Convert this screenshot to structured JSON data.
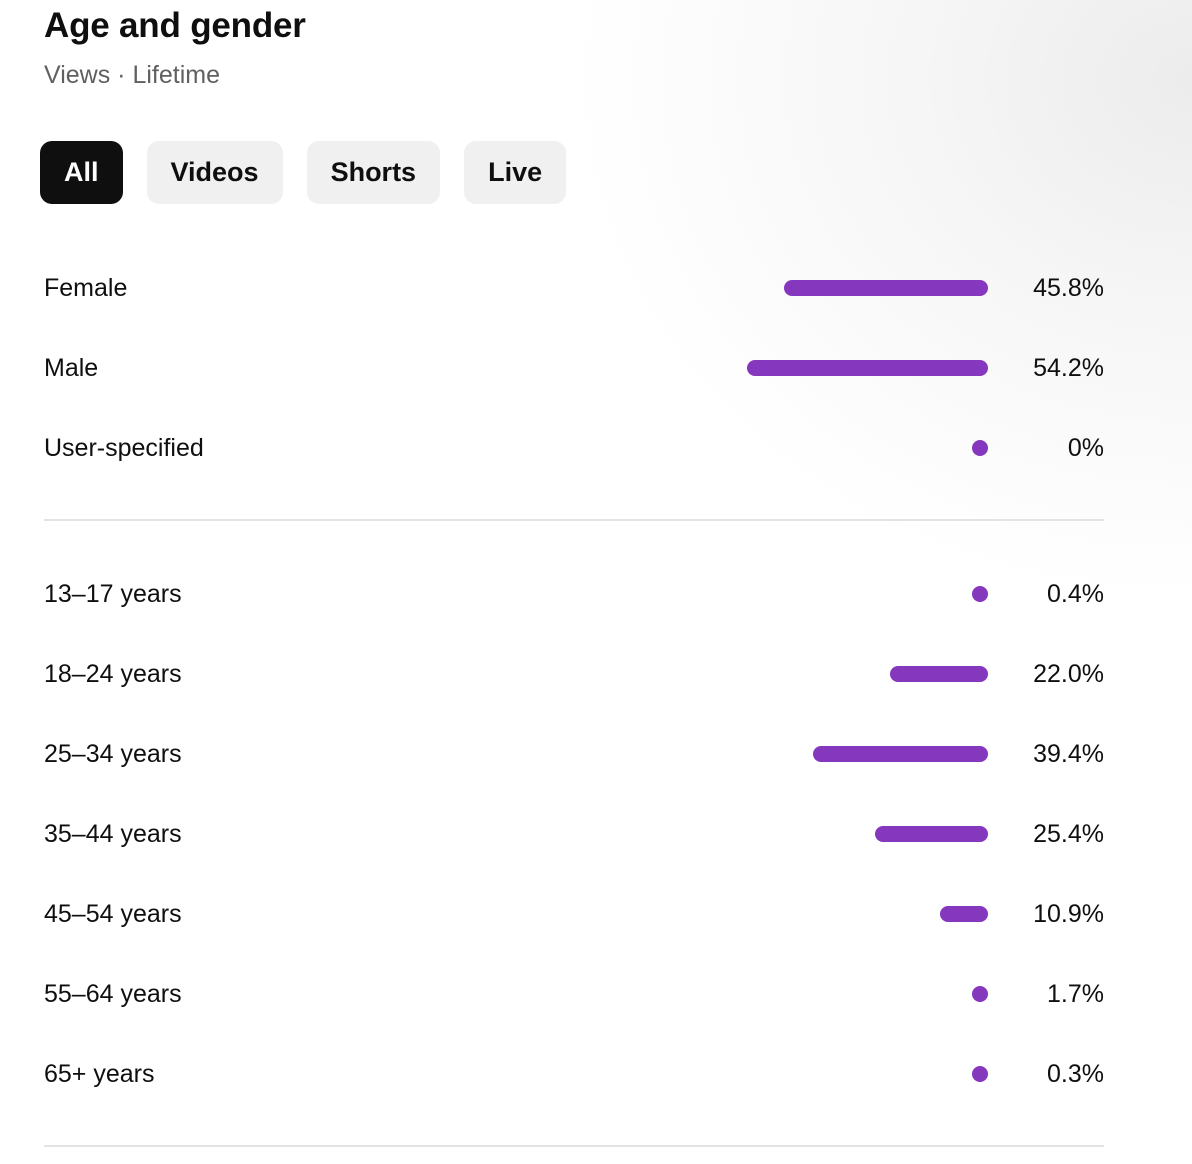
{
  "header": {
    "title": "Age and gender",
    "subtitle": "Views · Lifetime"
  },
  "filters": {
    "selected": "All",
    "chips": [
      "All",
      "Videos",
      "Shorts",
      "Live"
    ]
  },
  "colors": {
    "bar": "#8538bd",
    "chip_active_bg": "#0f0f0f",
    "chip_bg": "#f0f0f0"
  },
  "gender": [
    {
      "label": "Female",
      "value_text": "45.8%",
      "percent": 45.8
    },
    {
      "label": "Male",
      "value_text": "54.2%",
      "percent": 54.2
    },
    {
      "label": "User-specified",
      "value_text": "0%",
      "percent": 0
    }
  ],
  "age": [
    {
      "label": "13–17 years",
      "value_text": "0.4%",
      "percent": 0.4
    },
    {
      "label": "18–24 years",
      "value_text": "22.0%",
      "percent": 22.0
    },
    {
      "label": "25–34 years",
      "value_text": "39.4%",
      "percent": 39.4
    },
    {
      "label": "35–44 years",
      "value_text": "25.4%",
      "percent": 25.4
    },
    {
      "label": "45–54 years",
      "value_text": "10.9%",
      "percent": 10.9
    },
    {
      "label": "55–64 years",
      "value_text": "1.7%",
      "percent": 1.7
    },
    {
      "label": "65+ years",
      "value_text": "0.3%",
      "percent": 0.3
    }
  ]
}
